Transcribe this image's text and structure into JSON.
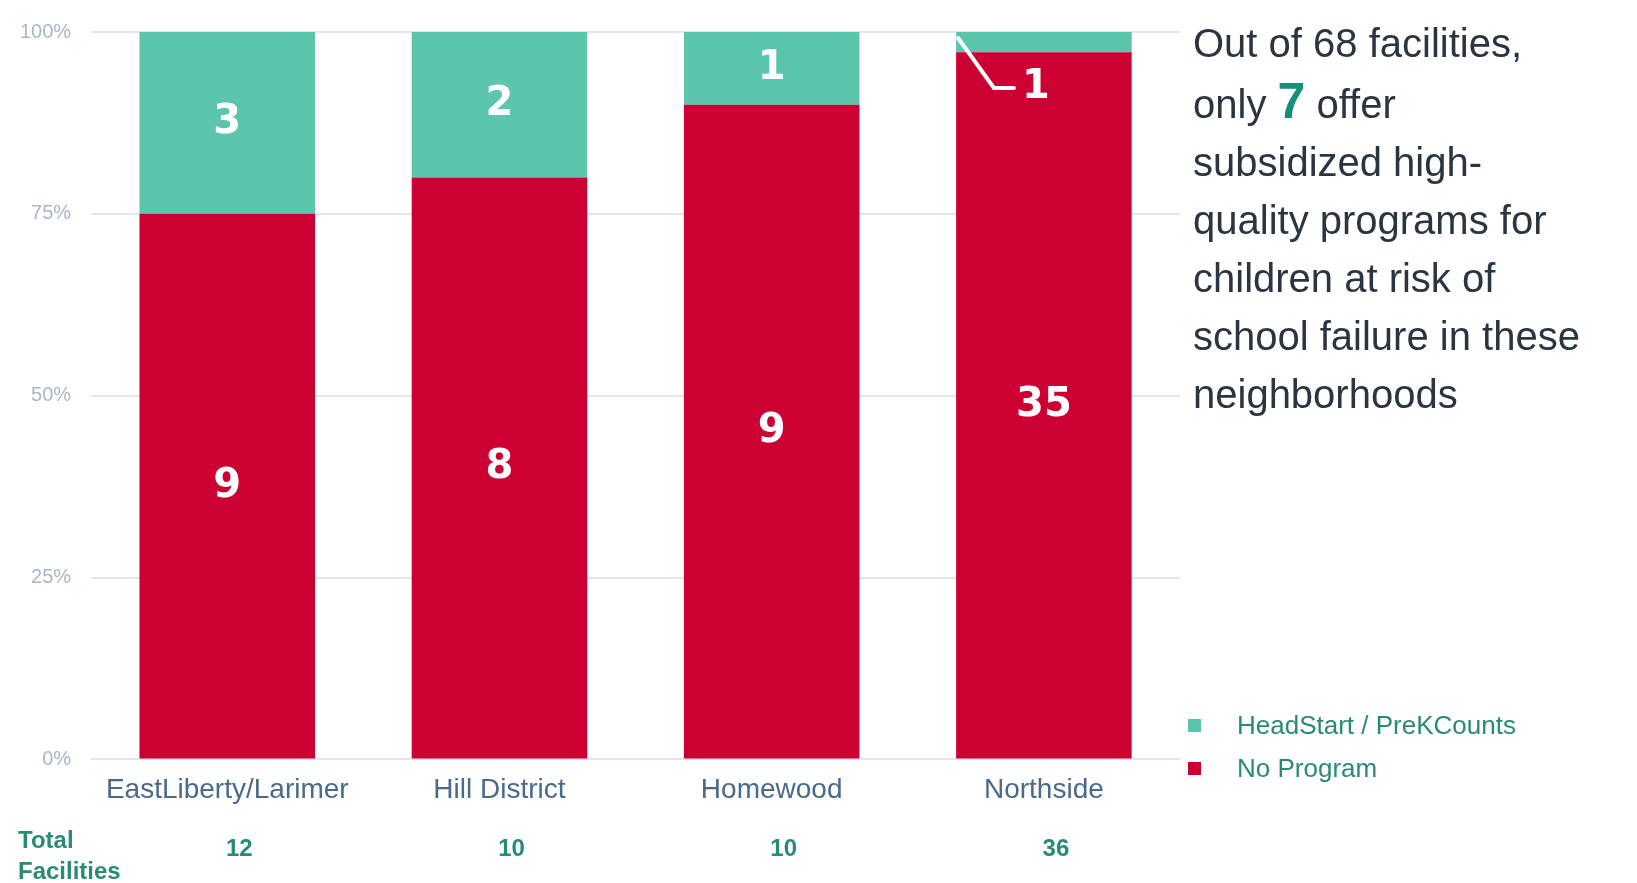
{
  "chart_data": {
    "type": "bar",
    "stacked": true,
    "categories": [
      "EastLiberty/Larimer",
      "Hill District",
      "Homewood",
      "Northside"
    ],
    "series": [
      {
        "name": "No Program",
        "color": "#cc0033",
        "values": [
          75,
          80,
          90,
          97.2
        ]
      },
      {
        "name": "HeadStart / PreKCounts",
        "color": "#5bc5ae",
        "values": [
          25,
          20,
          10,
          2.8
        ]
      }
    ],
    "ylim": [
      0,
      100
    ],
    "yticks": [
      {
        "value": 0,
        "label": "0%"
      },
      {
        "value": 25,
        "label": "25%"
      },
      {
        "value": 50,
        "label": "50%"
      },
      {
        "value": 75,
        "label": "75%"
      },
      {
        "value": 100,
        "label": "100%"
      }
    ],
    "grid": "y",
    "legend": "bottom right",
    "annotations": [
      "Total Facilities",
      "Out of 68 facilities, only ",
      "7",
      " offer subsidized high-quality programs for children at risk of school failure in these neighborhoods",
      "9",
      "8",
      "9",
      "35",
      "3",
      "2",
      "1",
      {
        "text": "1",
        "x": "Northside",
        "y": 100
      },
      "12",
      "10",
      "10",
      "36"
    ]
  }
}
